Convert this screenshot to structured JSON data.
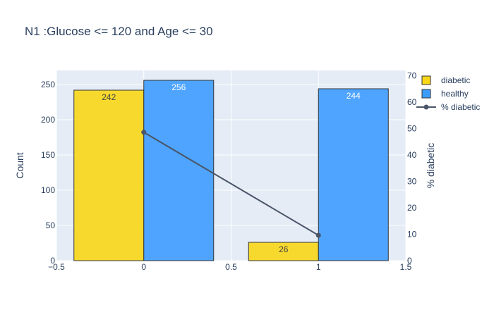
{
  "chart_data": {
    "type": "bar",
    "title": "N1 :Glucose <= 120 and Age <= 30",
    "xlabel": "",
    "ylabel": "Count",
    "y2label": "% diabetic",
    "xlim": [
      -0.5,
      1.5
    ],
    "ylim": [
      0,
      270
    ],
    "y2lim": [
      0,
      72
    ],
    "x_ticks": [
      "−0.5",
      "0",
      "0.5",
      "1",
      "1.5"
    ],
    "x_tick_values": [
      -0.5,
      0,
      0.5,
      1,
      1.5
    ],
    "y_ticks": [
      "0",
      "50",
      "100",
      "150",
      "200",
      "250"
    ],
    "y_tick_values": [
      0,
      50,
      100,
      150,
      200,
      250
    ],
    "y2_ticks": [
      "0",
      "10",
      "20",
      "30",
      "40",
      "50",
      "60",
      "70"
    ],
    "y2_tick_values": [
      0,
      10,
      20,
      30,
      40,
      50,
      60,
      70
    ],
    "categories": [
      0,
      1
    ],
    "bar_width": 0.4,
    "series": [
      {
        "name": "diabetic",
        "type": "bar",
        "values": [
          242,
          26
        ],
        "labels": [
          "242",
          "26"
        ],
        "color": "#f8d718",
        "label_color": "#444444",
        "offset": -0.2
      },
      {
        "name": "healthy",
        "type": "bar",
        "values": [
          256,
          244
        ],
        "labels": [
          "256",
          "244"
        ],
        "color": "#3d9cff",
        "label_color": "#ffffff",
        "offset": 0.2
      },
      {
        "name": "% diabetic",
        "type": "line",
        "axis": "y2",
        "x": [
          0,
          1
        ],
        "values": [
          48.6,
          9.6
        ],
        "color": "#4a5568"
      }
    ],
    "grid": true,
    "legend_position": "top-right",
    "plot_background": "#e5ecf6"
  }
}
